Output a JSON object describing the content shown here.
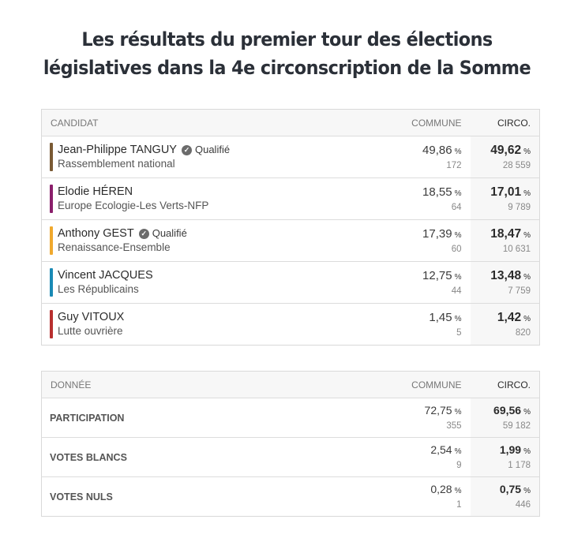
{
  "title_line1": "Les résultats du premier tour des élections",
  "title_line2": "législatives dans la 4e circonscription de la Somme",
  "candidates_table": {
    "headers": {
      "candidate": "CANDIDAT",
      "commune": "COMMUNE",
      "circo": "CIRCO."
    },
    "rows": [
      {
        "name": "Jean-Philippe TANGUY",
        "qualified": "Qualifié",
        "party": "Rassemblement national",
        "color": "#7a5a34",
        "commune_pct": "49,86",
        "commune_votes": "172",
        "circo_pct": "49,62",
        "circo_votes": "28 559"
      },
      {
        "name": "Elodie HÉREN",
        "qualified": "",
        "party": "Europe Ecologie-Les Verts-NFP",
        "color": "#8a1f6b",
        "commune_pct": "18,55",
        "commune_votes": "64",
        "circo_pct": "17,01",
        "circo_votes": "9 789"
      },
      {
        "name": "Anthony GEST",
        "qualified": "Qualifié",
        "party": "Renaissance-Ensemble",
        "color": "#f0a92e",
        "commune_pct": "17,39",
        "commune_votes": "60",
        "circo_pct": "18,47",
        "circo_votes": "10 631"
      },
      {
        "name": "Vincent JACQUES",
        "qualified": "",
        "party": "Les Républicains",
        "color": "#1a8ab5",
        "commune_pct": "12,75",
        "commune_votes": "44",
        "circo_pct": "13,48",
        "circo_votes": "7 759"
      },
      {
        "name": "Guy VITOUX",
        "qualified": "",
        "party": "Lutte ouvrière",
        "color": "#b8302f",
        "commune_pct": "1,45",
        "commune_votes": "5",
        "circo_pct": "1,42",
        "circo_votes": "820"
      }
    ]
  },
  "data_table": {
    "headers": {
      "label": "DONNÉE",
      "commune": "COMMUNE",
      "circo": "CIRCO."
    },
    "rows": [
      {
        "label": "PARTICIPATION",
        "commune_pct": "72,75",
        "commune_votes": "355",
        "circo_pct": "69,56",
        "circo_votes": "59 182"
      },
      {
        "label": "VOTES BLANCS",
        "commune_pct": "2,54",
        "commune_votes": "9",
        "circo_pct": "1,99",
        "circo_votes": "1 178"
      },
      {
        "label": "VOTES NULS",
        "commune_pct": "0,28",
        "commune_votes": "1",
        "circo_pct": "0,75",
        "circo_votes": "446"
      }
    ]
  },
  "percent_unit": "%",
  "icons": {
    "qualified": "check-circle-icon"
  }
}
